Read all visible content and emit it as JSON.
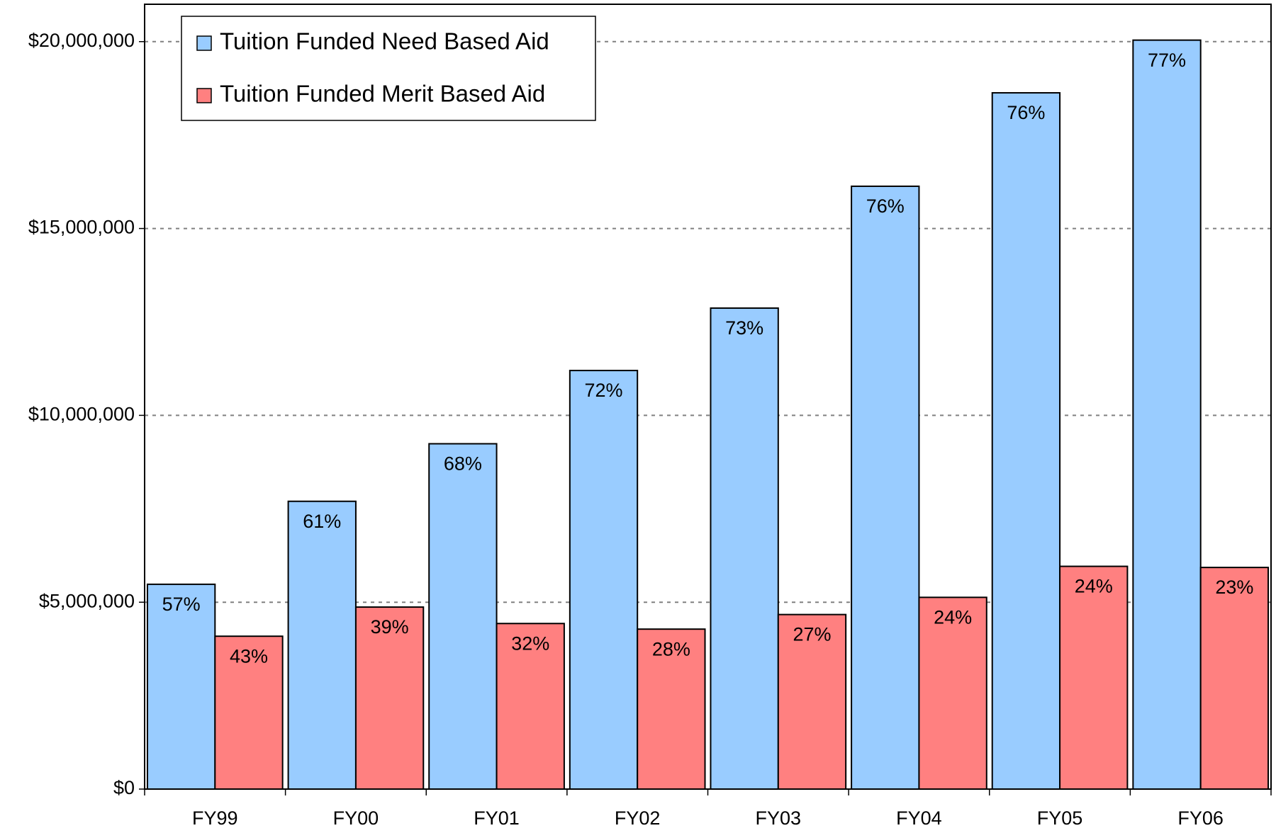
{
  "chart_data": {
    "type": "bar",
    "categories": [
      "FY99",
      "FY00",
      "FY01",
      "FY02",
      "FY03",
      "FY04",
      "FY05",
      "FY06"
    ],
    "series": [
      {
        "name": "Tuition Funded Need Based Aid",
        "color": "#99ccff",
        "values": [
          5480000,
          7700000,
          9240000,
          11200000,
          12870000,
          16130000,
          18630000,
          20040000
        ],
        "data_labels": [
          "57%",
          "61%",
          "68%",
          "72%",
          "73%",
          "76%",
          "76%",
          "77%"
        ]
      },
      {
        "name": "Tuition Funded Merit Based Aid",
        "color": "#ff8080",
        "values": [
          4090000,
          4870000,
          4430000,
          4280000,
          4670000,
          5130000,
          5960000,
          5930000
        ],
        "data_labels": [
          "43%",
          "39%",
          "32%",
          "28%",
          "27%",
          "24%",
          "24%",
          "23%"
        ]
      }
    ],
    "ylim": [
      0,
      21000000
    ],
    "yticks": [
      {
        "value": 0,
        "label": "$0"
      },
      {
        "value": 5000000,
        "label": "$5,000,000"
      },
      {
        "value": 10000000,
        "label": "$10,000,000"
      },
      {
        "value": 15000000,
        "label": "$15,000,000"
      },
      {
        "value": 20000000,
        "label": "$20,000,000"
      }
    ],
    "grid": true,
    "legend": "upper left"
  }
}
